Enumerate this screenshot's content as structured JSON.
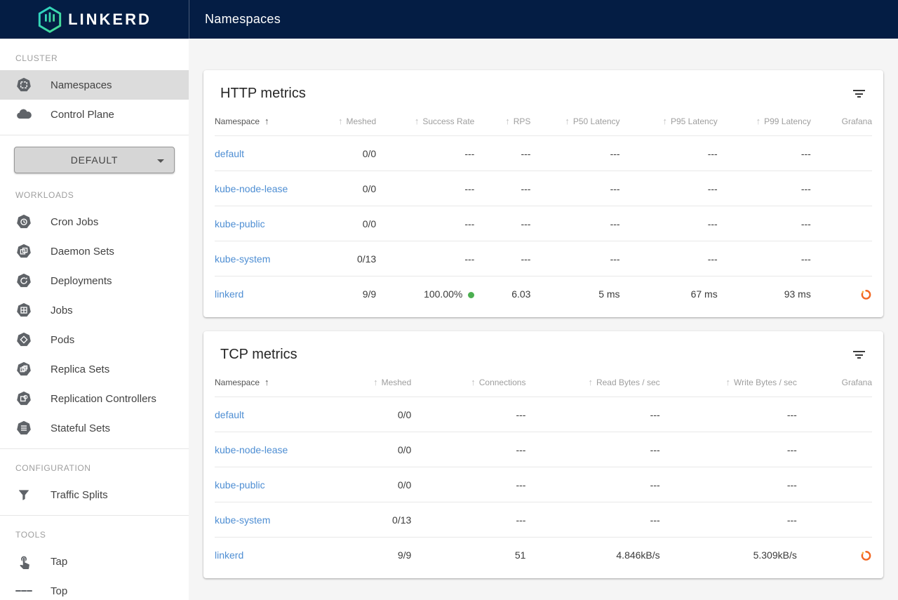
{
  "colors": {
    "topbar_navy": "#041d44",
    "brand_teal": "#2ad2c9",
    "brand_green": "#4adc8f",
    "link_blue": "#4e8ed3",
    "success_green": "#4caf50",
    "grafana_orange": "#f26722",
    "selected_item_bg": "#dcdcdc"
  },
  "topbar": {
    "brand": "LINKERD",
    "page_title": "Namespaces"
  },
  "sidebar": {
    "context_selector": {
      "value": "DEFAULT"
    },
    "sections": [
      {
        "label": "CLUSTER",
        "items": [
          {
            "label": "Namespaces",
            "selected": true
          },
          {
            "label": "Control Plane",
            "selected": false
          }
        ]
      },
      {
        "label": "WORKLOADS",
        "items": [
          {
            "label": "Cron Jobs"
          },
          {
            "label": "Daemon Sets"
          },
          {
            "label": "Deployments"
          },
          {
            "label": "Jobs"
          },
          {
            "label": "Pods"
          },
          {
            "label": "Replica Sets"
          },
          {
            "label": "Replication Controllers"
          },
          {
            "label": "Stateful Sets"
          }
        ]
      },
      {
        "label": "CONFIGURATION",
        "items": [
          {
            "label": "Traffic Splits"
          }
        ]
      },
      {
        "label": "TOOLS",
        "items": [
          {
            "label": "Tap"
          },
          {
            "label": "Top"
          }
        ]
      }
    ]
  },
  "http_metrics": {
    "title": "HTTP metrics",
    "sort": {
      "column": "Namespace",
      "direction": "asc"
    },
    "columns": [
      "Namespace",
      "Meshed",
      "Success Rate",
      "RPS",
      "P50 Latency",
      "P95 Latency",
      "P99 Latency",
      "Grafana"
    ],
    "rows": [
      {
        "cells": [
          {
            "text": "default",
            "link": true
          },
          {
            "text": "0/0"
          },
          {
            "text": "---"
          },
          {
            "text": "---"
          },
          {
            "text": "---"
          },
          {
            "text": "---"
          },
          {
            "text": "---"
          },
          {
            "text": ""
          }
        ]
      },
      {
        "cells": [
          {
            "text": "kube-node-lease",
            "link": true
          },
          {
            "text": "0/0"
          },
          {
            "text": "---"
          },
          {
            "text": "---"
          },
          {
            "text": "---"
          },
          {
            "text": "---"
          },
          {
            "text": "---"
          },
          {
            "text": ""
          }
        ]
      },
      {
        "cells": [
          {
            "text": "kube-public",
            "link": true
          },
          {
            "text": "0/0"
          },
          {
            "text": "---"
          },
          {
            "text": "---"
          },
          {
            "text": "---"
          },
          {
            "text": "---"
          },
          {
            "text": "---"
          },
          {
            "text": ""
          }
        ]
      },
      {
        "cells": [
          {
            "text": "kube-system",
            "link": true
          },
          {
            "text": "0/13"
          },
          {
            "text": "---"
          },
          {
            "text": "---"
          },
          {
            "text": "---"
          },
          {
            "text": "---"
          },
          {
            "text": "---"
          },
          {
            "text": ""
          }
        ]
      },
      {
        "cells": [
          {
            "text": "linkerd",
            "link": true
          },
          {
            "text": "9/9"
          },
          {
            "text": "100.00%",
            "dot": true
          },
          {
            "text": "6.03"
          },
          {
            "text": "5 ms"
          },
          {
            "text": "67 ms"
          },
          {
            "text": "93 ms"
          },
          {
            "icon": "grafana"
          }
        ]
      }
    ]
  },
  "tcp_metrics": {
    "title": "TCP metrics",
    "sort": {
      "column": "Namespace",
      "direction": "asc"
    },
    "columns": [
      "Namespace",
      "Meshed",
      "Connections",
      "Read Bytes / sec",
      "Write Bytes / sec",
      "Grafana"
    ],
    "rows": [
      {
        "cells": [
          {
            "text": "default",
            "link": true
          },
          {
            "text": "0/0"
          },
          {
            "text": "---"
          },
          {
            "text": "---"
          },
          {
            "text": "---"
          },
          {
            "text": ""
          }
        ]
      },
      {
        "cells": [
          {
            "text": "kube-node-lease",
            "link": true
          },
          {
            "text": "0/0"
          },
          {
            "text": "---"
          },
          {
            "text": "---"
          },
          {
            "text": "---"
          },
          {
            "text": ""
          }
        ]
      },
      {
        "cells": [
          {
            "text": "kube-public",
            "link": true
          },
          {
            "text": "0/0"
          },
          {
            "text": "---"
          },
          {
            "text": "---"
          },
          {
            "text": "---"
          },
          {
            "text": ""
          }
        ]
      },
      {
        "cells": [
          {
            "text": "kube-system",
            "link": true
          },
          {
            "text": "0/13"
          },
          {
            "text": "---"
          },
          {
            "text": "---"
          },
          {
            "text": "---"
          },
          {
            "text": ""
          }
        ]
      },
      {
        "cells": [
          {
            "text": "linkerd",
            "link": true
          },
          {
            "text": "9/9"
          },
          {
            "text": "51"
          },
          {
            "text": "4.846kB/s"
          },
          {
            "text": "5.309kB/s"
          },
          {
            "icon": "grafana"
          }
        ]
      }
    ]
  }
}
